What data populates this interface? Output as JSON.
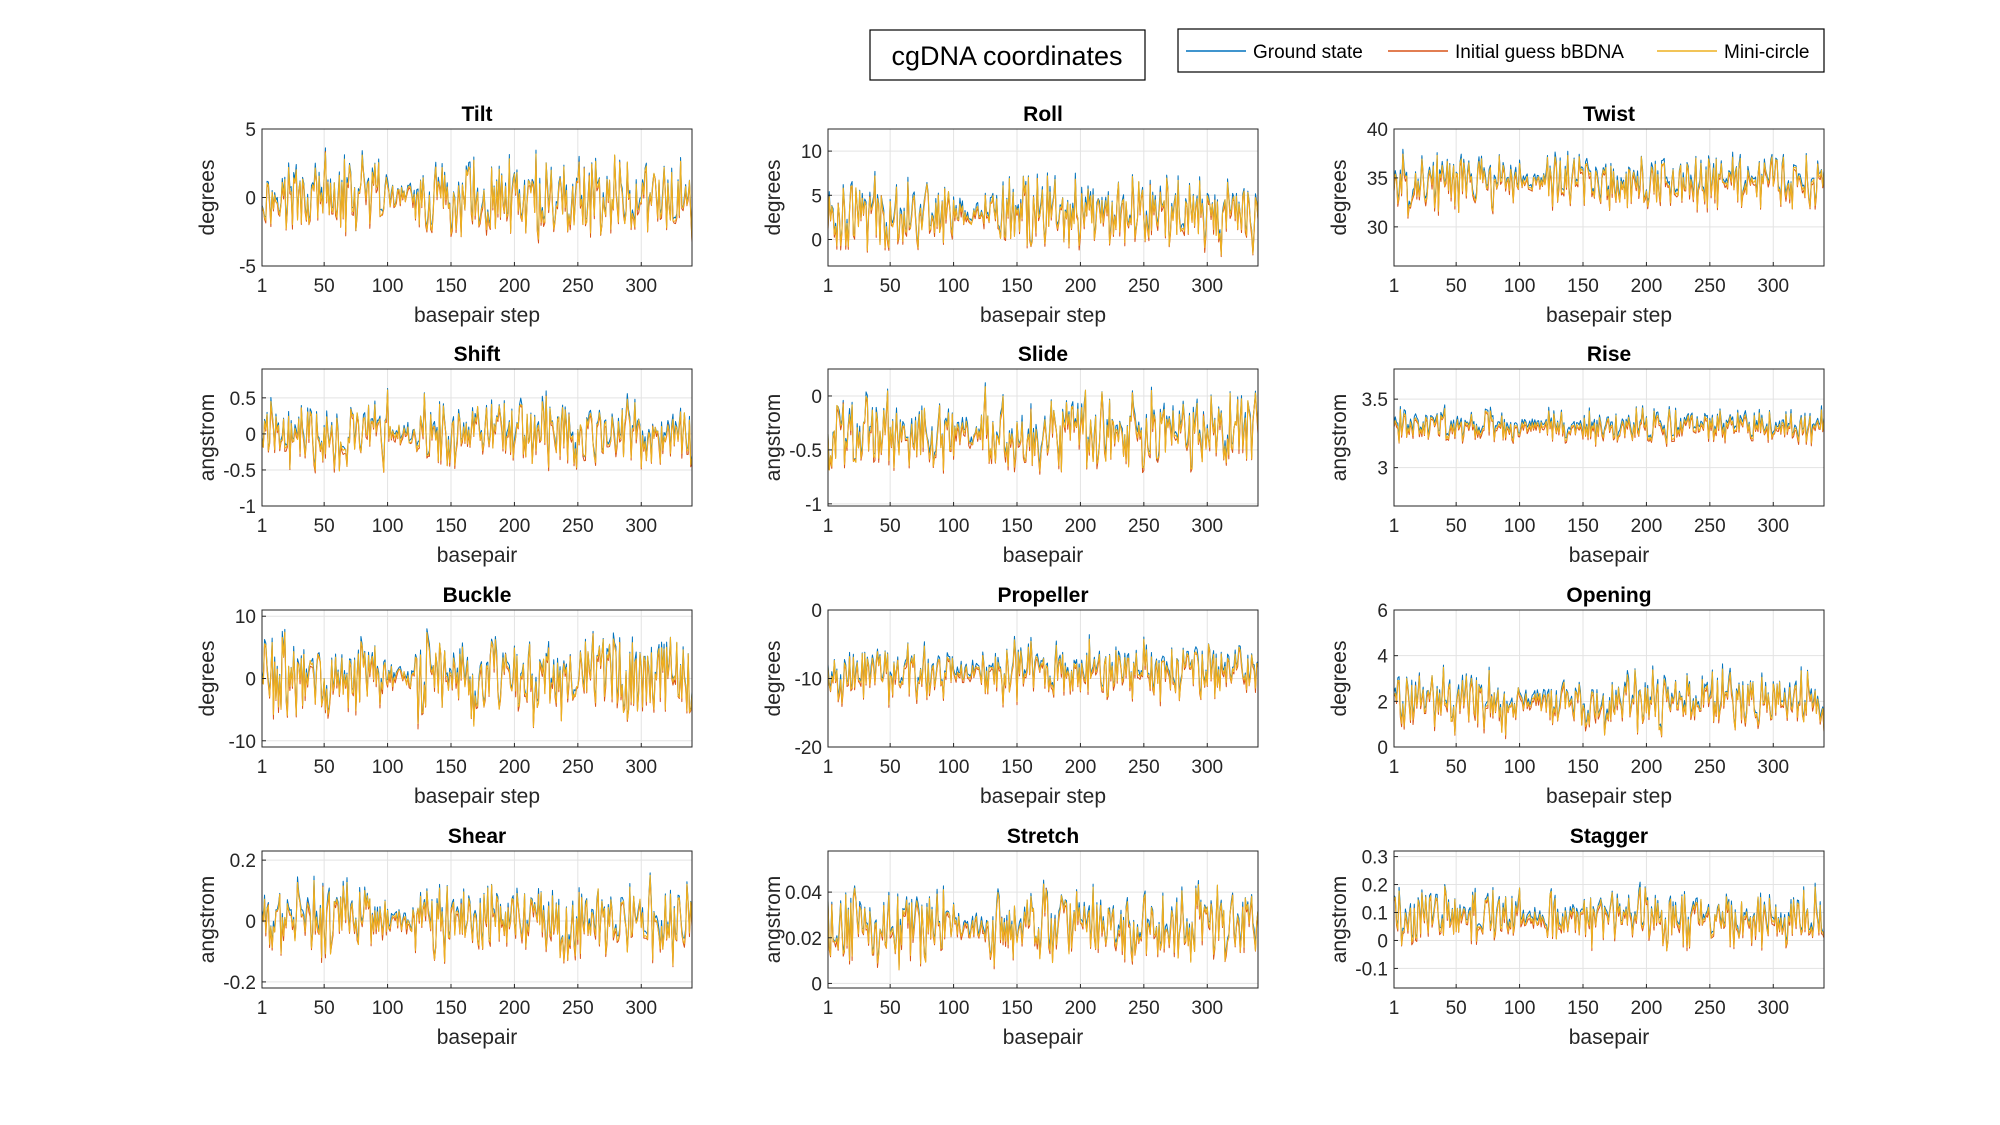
{
  "figure": {
    "suptitle": "cgDNA coordinates",
    "legend_position": "top-right",
    "series": [
      {
        "name": "Ground state",
        "color": "#0072BD"
      },
      {
        "name": "Initial guess bBDNA",
        "color": "#D95319"
      },
      {
        "name": "Mini-circle",
        "color": "#EDB120"
      }
    ]
  },
  "chart_data": [
    {
      "type": "line",
      "title": "Tilt",
      "xlabel": "basepair step",
      "ylabel": "degrees",
      "xlim": [
        1,
        340
      ],
      "ylim": [
        -5,
        5
      ],
      "xticks": [
        1,
        50,
        100,
        150,
        200,
        250,
        300
      ],
      "yticks": [
        -5,
        0,
        5
      ],
      "grid": true,
      "n_points": 340,
      "approx_center": 0,
      "approx_amplitude": 3.5
    },
    {
      "type": "line",
      "title": "Roll",
      "xlabel": "basepair step",
      "ylabel": "degrees",
      "xlim": [
        1,
        340
      ],
      "ylim": [
        -3,
        12.5
      ],
      "xticks": [
        1,
        50,
        100,
        150,
        200,
        250,
        300
      ],
      "yticks": [
        0,
        5,
        10
      ],
      "grid": true,
      "n_points": 340,
      "approx_center": 3,
      "approx_amplitude": 5
    },
    {
      "type": "line",
      "title": "Twist",
      "xlabel": "basepair step",
      "ylabel": "degrees",
      "xlim": [
        1,
        340
      ],
      "ylim": [
        26,
        40
      ],
      "xticks": [
        1,
        50,
        100,
        150,
        200,
        250,
        300
      ],
      "yticks": [
        30,
        35,
        40
      ],
      "grid": true,
      "n_points": 340,
      "approx_center": 34.5,
      "approx_amplitude": 3.5
    },
    {
      "type": "line",
      "title": "Shift",
      "xlabel": "basepair",
      "ylabel": "angstrom",
      "xlim": [
        1,
        340
      ],
      "ylim": [
        -1,
        0.9
      ],
      "xticks": [
        1,
        50,
        100,
        150,
        200,
        250,
        300
      ],
      "yticks": [
        -1,
        -0.5,
        0,
        0.5
      ],
      "grid": true,
      "n_points": 340,
      "approx_center": 0,
      "approx_amplitude": 0.6
    },
    {
      "type": "line",
      "title": "Slide",
      "xlabel": "basepair",
      "ylabel": "angstrom",
      "xlim": [
        1,
        340
      ],
      "ylim": [
        -1.02,
        0.25
      ],
      "xticks": [
        1,
        50,
        100,
        150,
        200,
        250,
        300
      ],
      "yticks": [
        -1,
        -0.5,
        0
      ],
      "grid": true,
      "n_points": 340,
      "approx_center": -0.35,
      "approx_amplitude": 0.45
    },
    {
      "type": "line",
      "title": "Rise",
      "xlabel": "basepair",
      "ylabel": "angstrom",
      "xlim": [
        1,
        340
      ],
      "ylim": [
        2.72,
        3.72
      ],
      "xticks": [
        1,
        50,
        100,
        150,
        200,
        250,
        300
      ],
      "yticks": [
        3,
        3.5
      ],
      "grid": true,
      "n_points": 340,
      "approx_center": 3.3,
      "approx_amplitude": 0.15
    },
    {
      "type": "line",
      "title": "Buckle",
      "xlabel": "basepair step",
      "ylabel": "degrees",
      "xlim": [
        1,
        340
      ],
      "ylim": [
        -11,
        11
      ],
      "xticks": [
        1,
        50,
        100,
        150,
        200,
        250,
        300
      ],
      "yticks": [
        -10,
        0,
        10
      ],
      "grid": true,
      "n_points": 340,
      "approx_center": 0,
      "approx_amplitude": 8
    },
    {
      "type": "line",
      "title": "Propeller",
      "xlabel": "basepair step",
      "ylabel": "degrees",
      "xlim": [
        1,
        340
      ],
      "ylim": [
        -20,
        0
      ],
      "xticks": [
        1,
        50,
        100,
        150,
        200,
        250,
        300
      ],
      "yticks": [
        -20,
        -10,
        0
      ],
      "grid": true,
      "n_points": 340,
      "approx_center": -9,
      "approx_amplitude": 5
    },
    {
      "type": "line",
      "title": "Opening",
      "xlabel": "basepair step",
      "ylabel": "degrees",
      "xlim": [
        1,
        340
      ],
      "ylim": [
        0,
        6
      ],
      "xticks": [
        1,
        50,
        100,
        150,
        200,
        250,
        300
      ],
      "yticks": [
        0,
        2,
        4,
        6
      ],
      "grid": true,
      "n_points": 340,
      "approx_center": 2,
      "approx_amplitude": 1.6
    },
    {
      "type": "line",
      "title": "Shear",
      "xlabel": "basepair",
      "ylabel": "angstrom",
      "xlim": [
        1,
        340
      ],
      "ylim": [
        -0.22,
        0.23
      ],
      "xticks": [
        1,
        50,
        100,
        150,
        200,
        250,
        300
      ],
      "yticks": [
        -0.2,
        0,
        0.2
      ],
      "grid": true,
      "n_points": 340,
      "approx_center": 0,
      "approx_amplitude": 0.15
    },
    {
      "type": "line",
      "title": "Stretch",
      "xlabel": "basepair",
      "ylabel": "angstrom",
      "xlim": [
        1,
        340
      ],
      "ylim": [
        -0.002,
        0.058
      ],
      "xticks": [
        1,
        50,
        100,
        150,
        200,
        250,
        300
      ],
      "yticks": [
        0,
        0.02,
        0.04
      ],
      "grid": true,
      "n_points": 340,
      "approx_center": 0.025,
      "approx_amplitude": 0.02
    },
    {
      "type": "line",
      "title": "Stagger",
      "xlabel": "basepair",
      "ylabel": "angstrom",
      "xlim": [
        1,
        340
      ],
      "ylim": [
        -0.17,
        0.32
      ],
      "xticks": [
        1,
        50,
        100,
        150,
        200,
        250,
        300
      ],
      "yticks": [
        -0.1,
        0,
        0.1,
        0.2,
        0.3
      ],
      "grid": true,
      "n_points": 340,
      "approx_center": 0.08,
      "approx_amplitude": 0.12
    }
  ]
}
